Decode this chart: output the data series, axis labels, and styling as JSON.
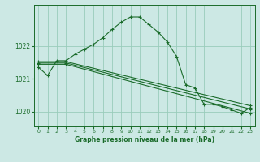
{
  "bg_color": "#cce8e4",
  "grid_color": "#99ccbb",
  "line_color": "#1a6b2a",
  "title": "Graphe pression niveau de la mer (hPa)",
  "xlim": [
    -0.5,
    23.5
  ],
  "ylim": [
    1019.55,
    1023.25
  ],
  "yticks": [
    1020,
    1021,
    1022
  ],
  "xticks": [
    0,
    1,
    2,
    3,
    4,
    5,
    6,
    7,
    8,
    9,
    10,
    11,
    12,
    13,
    14,
    15,
    16,
    17,
    18,
    19,
    20,
    21,
    22,
    23
  ],
  "series": [
    {
      "x": [
        0,
        1,
        2,
        3,
        4,
        5,
        6,
        7,
        8,
        9,
        10,
        11,
        12,
        13,
        14,
        15,
        16,
        17,
        18,
        19,
        20,
        21,
        22,
        23
      ],
      "y": [
        1021.35,
        1021.1,
        1021.55,
        1021.55,
        1021.75,
        1021.9,
        1022.05,
        1022.25,
        1022.5,
        1022.72,
        1022.88,
        1022.88,
        1022.65,
        1022.42,
        1022.12,
        1021.68,
        1020.82,
        1020.72,
        1020.22,
        1020.22,
        1020.15,
        1020.05,
        1019.95,
        1020.12
      ],
      "marker": "+"
    },
    {
      "x": [
        0,
        3,
        23
      ],
      "y": [
        1021.52,
        1021.52,
        1020.18
      ],
      "marker": "+"
    },
    {
      "x": [
        0,
        3,
        23
      ],
      "y": [
        1021.48,
        1021.48,
        1020.08
      ],
      "marker": "+"
    },
    {
      "x": [
        0,
        3,
        23
      ],
      "y": [
        1021.44,
        1021.44,
        1019.95
      ],
      "marker": "+"
    }
  ]
}
